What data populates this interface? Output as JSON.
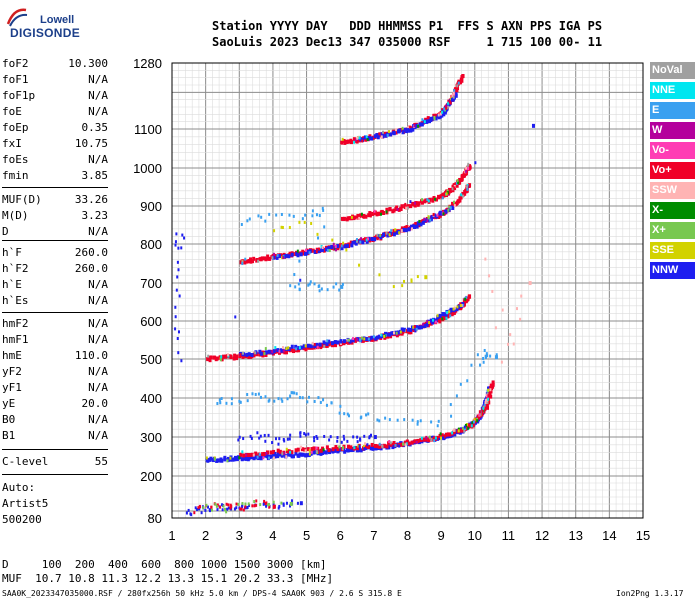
{
  "logo": {
    "line1": "Lowell",
    "line2": "DIGISONDE"
  },
  "header": {
    "line1": "Station YYYY DAY   DDD HHMMSS P1  FFS S AXN PPS IGA PS",
    "line2": "SaoLuis 2023 Dec13 347 035000 RSF     1 715 100 00- 11"
  },
  "params_group1": [
    {
      "name": "foF2",
      "value": "10.300"
    },
    {
      "name": "foF1",
      "value": "N/A"
    },
    {
      "name": "foF1p",
      "value": "N/A"
    },
    {
      "name": "foE",
      "value": "N/A"
    },
    {
      "name": "foEp",
      "value": "0.35"
    },
    {
      "name": "fxI",
      "value": "10.75"
    },
    {
      "name": "foEs",
      "value": "N/A"
    },
    {
      "name": "fmin",
      "value": "3.85"
    }
  ],
  "params_group2": [
    {
      "name": "MUF(D)",
      "value": "33.26"
    },
    {
      "name": "M(D)",
      "value": "3.23"
    },
    {
      "name": "D",
      "value": "N/A"
    }
  ],
  "params_group3": [
    {
      "name": "h`F",
      "value": "260.0"
    },
    {
      "name": "h`F2",
      "value": "260.0"
    },
    {
      "name": "h`E",
      "value": "N/A"
    },
    {
      "name": "h`Es",
      "value": "N/A"
    }
  ],
  "params_group4": [
    {
      "name": "hmF2",
      "value": "N/A"
    },
    {
      "name": "hmF1",
      "value": "N/A"
    },
    {
      "name": "hmE",
      "value": "110.0"
    },
    {
      "name": "yF2",
      "value": "N/A"
    },
    {
      "name": "yF1",
      "value": "N/A"
    },
    {
      "name": "yE",
      "value": "20.0"
    },
    {
      "name": "B0",
      "value": "N/A"
    },
    {
      "name": "B1",
      "value": "N/A"
    }
  ],
  "params_group5": [
    {
      "name": "C-level",
      "value": "55"
    }
  ],
  "auto": {
    "line1": "Auto:",
    "line2": "Artist5",
    "line3": "500200"
  },
  "legend": [
    {
      "label": "NoVal",
      "color": "#a0a0a0"
    },
    {
      "label": "NNE",
      "color": "#00e6f0"
    },
    {
      "label": "E",
      "color": "#3aa0f0"
    },
    {
      "label": "W",
      "color": "#b4009c"
    },
    {
      "label": "Vo-",
      "color": "#ff3cb4"
    },
    {
      "label": "Vo+",
      "color": "#f00028"
    },
    {
      "label": "SSW",
      "color": "#ffb4b4"
    },
    {
      "label": "X-",
      "color": "#008c00"
    },
    {
      "label": "X+",
      "color": "#78c850"
    },
    {
      "label": "SSE",
      "color": "#d2d200"
    },
    {
      "label": "NNW",
      "color": "#1e1ef0"
    }
  ],
  "footer": {
    "d_line": "D     100  200  400  600  800 1000 1500 3000 [km]",
    "muf_line": "MUF  10.7 10.8 11.3 12.2 13.3 15.1 20.2 33.3 [MHz]",
    "file_line": "SAA0K_2023347035000.RSF / 280fx256h 50 kHz 5.0 km / DPS-4 SAA0K 903 / 2.6 S 315.8 E",
    "version": "Ion2Png 1.3.17"
  },
  "chart_data": {
    "type": "scatter",
    "x_ticks": [
      1,
      2,
      3,
      4,
      5,
      6,
      7,
      8,
      9,
      10,
      11,
      12,
      13,
      14,
      15
    ],
    "y_ticks": [
      80,
      200,
      300,
      400,
      500,
      600,
      700,
      800,
      900,
      1000,
      1100,
      1280
    ],
    "xlim": [
      1,
      15
    ],
    "ylim": [
      80,
      1280
    ],
    "grid": true,
    "legend_position": "right",
    "traces": [
      {
        "name": "F trace",
        "color": "#1e1ef0",
        "points": [
          [
            2,
            246
          ],
          [
            3,
            250
          ],
          [
            4,
            256
          ],
          [
            5,
            262
          ],
          [
            6,
            270
          ],
          [
            7,
            278
          ],
          [
            8,
            288
          ],
          [
            9,
            305
          ],
          [
            9.6,
            322
          ],
          [
            10,
            345
          ],
          [
            10.2,
            370
          ],
          [
            10.3,
            400
          ],
          [
            10.4,
            430
          ]
        ]
      },
      {
        "name": "F trace",
        "color": "#f00028",
        "points": [
          [
            3,
            260
          ],
          [
            5,
            272
          ],
          [
            7,
            282
          ],
          [
            8.5,
            295
          ],
          [
            9.8,
            330
          ],
          [
            10.3,
            380
          ],
          [
            10.5,
            445
          ]
        ]
      },
      {
        "name": "2F trace",
        "color": "#f00028",
        "points": [
          [
            2,
            505
          ],
          [
            3,
            512
          ],
          [
            4,
            522
          ],
          [
            5,
            535
          ],
          [
            6,
            548
          ],
          [
            7,
            560
          ],
          [
            8,
            578
          ],
          [
            9,
            610
          ],
          [
            9.5,
            640
          ],
          [
            9.8,
            670
          ]
        ]
      },
      {
        "name": "2F trace",
        "color": "#1e1ef0",
        "points": [
          [
            3,
            515
          ],
          [
            5,
            540
          ],
          [
            7,
            562
          ],
          [
            8.5,
            595
          ],
          [
            9.6,
            650
          ]
        ]
      },
      {
        "name": "3F trace",
        "color": "#f00028",
        "points": [
          [
            3,
            760
          ],
          [
            4,
            772
          ],
          [
            5,
            785
          ],
          [
            6,
            800
          ],
          [
            7,
            820
          ],
          [
            8,
            848
          ],
          [
            9,
            885
          ],
          [
            9.5,
            920
          ],
          [
            9.8,
            960
          ]
        ]
      },
      {
        "name": "3F trace",
        "color": "#1e1ef0",
        "points": [
          [
            4,
            770
          ],
          [
            6,
            798
          ],
          [
            8,
            845
          ],
          [
            9.3,
            900
          ]
        ]
      },
      {
        "name": "upper trace",
        "color": "#f00028",
        "points": [
          [
            6,
            870
          ],
          [
            7,
            885
          ],
          [
            8,
            905
          ],
          [
            9,
            930
          ],
          [
            9.3,
            950
          ],
          [
            9.6,
            980
          ],
          [
            9.8,
            1010
          ]
        ]
      },
      {
        "name": "4F trace",
        "color": "#f00028",
        "points": [
          [
            6,
            1070
          ],
          [
            7,
            1085
          ],
          [
            8,
            1105
          ],
          [
            9,
            1150
          ],
          [
            9.3,
            1190
          ],
          [
            9.6,
            1250
          ]
        ]
      },
      {
        "name": "4F trace",
        "color": "#1e1ef0",
        "points": [
          [
            6.5,
            1078
          ],
          [
            8,
            1102
          ],
          [
            9,
            1145
          ],
          [
            9.4,
            1200
          ]
        ]
      },
      {
        "name": "sporadic low",
        "color": "#1e1ef0",
        "points": [
          [
            1.4,
            100
          ],
          [
            1.8,
            105
          ],
          [
            2,
            112
          ],
          [
            2.4,
            118
          ],
          [
            2.8,
            115
          ],
          [
            3.2,
            120
          ],
          [
            3.8,
            118
          ],
          [
            4.3,
            122
          ],
          [
            4.8,
            128
          ]
        ]
      },
      {
        "name": "sporadic low",
        "color": "#f00028",
        "points": [
          [
            1.6,
            108
          ],
          [
            2.2,
            115
          ],
          [
            2.6,
            120
          ],
          [
            3,
            112
          ],
          [
            3.6,
            125
          ],
          [
            4,
            118
          ]
        ]
      },
      {
        "name": "sporadic low",
        "color": "#78c850",
        "points": [
          [
            1.8,
            118
          ],
          [
            2.5,
            110
          ],
          [
            3.4,
            122
          ],
          [
            4.5,
            126
          ]
        ]
      },
      {
        "name": "scatter 2",
        "color": "#3aa0f0",
        "points": [
          [
            2.3,
            390
          ],
          [
            2.8,
            400
          ],
          [
            3.5,
            410
          ],
          [
            4,
            395
          ],
          [
            4.5,
            412
          ],
          [
            5,
            402
          ],
          [
            5.6,
            398
          ],
          [
            6.2,
            360
          ],
          [
            7,
            352
          ],
          [
            8,
            348
          ],
          [
            9,
            340
          ],
          [
            10,
            480
          ],
          [
            10.3,
            520
          ],
          [
            10.6,
            510
          ]
        ]
      },
      {
        "name": "scatter 2",
        "color": "#1e1ef0",
        "points": [
          [
            3,
            300
          ],
          [
            3.5,
            310
          ],
          [
            4,
            295
          ],
          [
            4.5,
            305
          ],
          [
            5,
            312
          ],
          [
            5.5,
            300
          ],
          [
            6,
            295
          ],
          [
            6.5,
            300
          ],
          [
            7,
            305
          ]
        ]
      },
      {
        "name": "scatter 3",
        "color": "#3aa0f0",
        "points": [
          [
            3,
            860
          ],
          [
            4,
            875
          ],
          [
            5,
            880
          ],
          [
            5.6,
            890
          ],
          [
            4.5,
            690
          ],
          [
            5,
            700
          ],
          [
            5.5,
            690
          ],
          [
            6,
            695
          ]
        ]
      },
      {
        "name": "scatter 3",
        "color": "#d2d200",
        "points": [
          [
            4,
            845
          ],
          [
            5,
            862
          ],
          [
            7.5,
            702
          ],
          [
            8.5,
            720
          ]
        ]
      },
      {
        "name": "misc",
        "color": "#1e1ef0",
        "points": [
          [
            1.2,
            830
          ],
          [
            1.2,
            790
          ],
          [
            1.2,
            635
          ],
          [
            1.2,
            505
          ],
          [
            11.7,
            1114
          ]
        ]
      },
      {
        "name": "misc",
        "color": "#ffb4b4",
        "points": [
          [
            10.4,
            760
          ],
          [
            10.9,
            505
          ],
          [
            11.6,
            705
          ]
        ]
      }
    ]
  }
}
